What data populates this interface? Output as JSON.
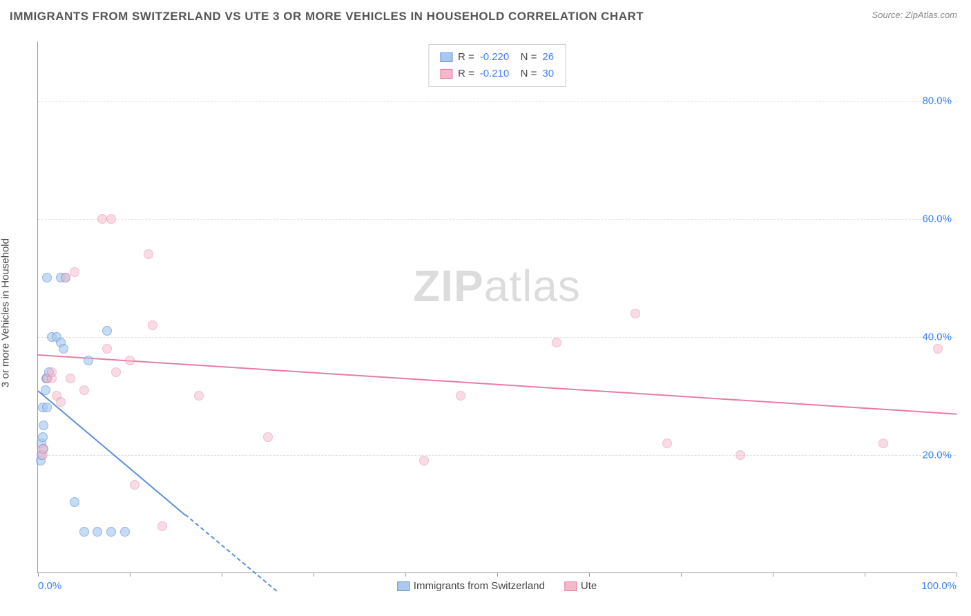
{
  "title": "IMMIGRANTS FROM SWITZERLAND VS UTE 3 OR MORE VEHICLES IN HOUSEHOLD CORRELATION CHART",
  "source": "Source: ZipAtlas.com",
  "ylabel": "3 or more Vehicles in Household",
  "watermark": {
    "bold": "ZIP",
    "rest": "atlas"
  },
  "chart": {
    "type": "scatter",
    "xlim": [
      0,
      100
    ],
    "ylim": [
      0,
      90
    ],
    "yticks": [
      {
        "v": 20,
        "label": "20.0%"
      },
      {
        "v": 40,
        "label": "40.0%"
      },
      {
        "v": 60,
        "label": "60.0%"
      },
      {
        "v": 80,
        "label": "80.0%"
      }
    ],
    "xticks_minor": [
      0,
      10,
      20,
      30,
      40,
      50,
      60,
      70,
      80,
      90,
      100
    ],
    "xtick_labels": [
      {
        "v": 0,
        "label": "0.0%"
      },
      {
        "v": 100,
        "label": "100.0%"
      }
    ],
    "background_color": "#ffffff",
    "grid_color": "#dddddd",
    "marker_size": 14,
    "series": [
      {
        "name": "Immigrants from Switzerland",
        "fill": "#a9c9ef",
        "stroke": "#5b8fd6",
        "fill_opacity": 0.65,
        "R": "-0.220",
        "N": "26",
        "trend": {
          "x1": 0,
          "y1": 31,
          "x2": 16,
          "y2": 10,
          "dashed_after_x": 16,
          "dash_x2": 26,
          "dash_y2": -3
        },
        "points": [
          [
            0.3,
            19
          ],
          [
            0.4,
            20
          ],
          [
            0.4,
            22
          ],
          [
            0.5,
            23
          ],
          [
            0.6,
            21
          ],
          [
            0.6,
            25
          ],
          [
            0.8,
            31
          ],
          [
            0.9,
            33
          ],
          [
            1.0,
            33
          ],
          [
            1.5,
            40
          ],
          [
            2.0,
            40
          ],
          [
            2.5,
            39
          ],
          [
            2.8,
            38
          ],
          [
            2.5,
            50
          ],
          [
            3.0,
            50
          ],
          [
            0.5,
            28
          ],
          [
            1.0,
            28
          ],
          [
            1.2,
            34
          ],
          [
            5.5,
            36
          ],
          [
            4.0,
            12
          ],
          [
            5.0,
            7
          ],
          [
            6.5,
            7
          ],
          [
            8.0,
            7
          ],
          [
            9.5,
            7
          ],
          [
            7.5,
            41
          ],
          [
            1.0,
            50
          ]
        ]
      },
      {
        "name": "Ute",
        "fill": "#f4b8c8",
        "stroke": "#e77ca0",
        "fill_opacity": 0.5,
        "R": "-0.210",
        "N": "30",
        "trend": {
          "x1": 0,
          "y1": 37,
          "x2": 100,
          "y2": 27
        },
        "points": [
          [
            0.5,
            20
          ],
          [
            0.5,
            21
          ],
          [
            1.0,
            33
          ],
          [
            1.5,
            33
          ],
          [
            1.5,
            34
          ],
          [
            2.0,
            30
          ],
          [
            2.5,
            29
          ],
          [
            3.5,
            33
          ],
          [
            3.0,
            50
          ],
          [
            4.0,
            51
          ],
          [
            5.0,
            31
          ],
          [
            7.0,
            60
          ],
          [
            8.0,
            60
          ],
          [
            7.5,
            38
          ],
          [
            8.5,
            34
          ],
          [
            10.0,
            36
          ],
          [
            10.5,
            15
          ],
          [
            12.0,
            54
          ],
          [
            12.5,
            42
          ],
          [
            13.5,
            8
          ],
          [
            17.5,
            30
          ],
          [
            25.0,
            23
          ],
          [
            42.0,
            19
          ],
          [
            46.0,
            30
          ],
          [
            56.5,
            39
          ],
          [
            65.0,
            44
          ],
          [
            68.5,
            22
          ],
          [
            76.5,
            20
          ],
          [
            92.0,
            22
          ],
          [
            98.0,
            38
          ]
        ]
      }
    ]
  },
  "legend_bottom": [
    {
      "label": "Immigrants from Switzerland",
      "fill": "#a9c9ef",
      "stroke": "#5b8fd6"
    },
    {
      "label": "Ute",
      "fill": "#f4b8c8",
      "stroke": "#e77ca0"
    }
  ]
}
